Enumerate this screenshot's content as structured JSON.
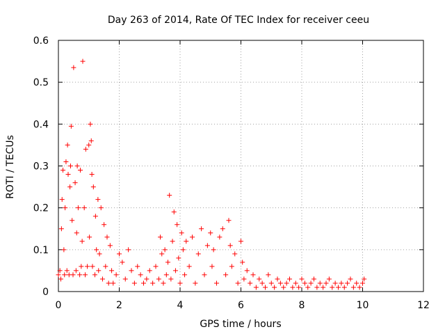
{
  "chart_data": {
    "type": "scatter",
    "title": "Day 263 of 2014, Rate Of TEC Index for receiver ceeu",
    "xlabel": "GPS time / hours",
    "ylabel": "ROTI / TECUs",
    "xlim": [
      0,
      12
    ],
    "ylim": [
      0,
      0.6
    ],
    "x_ticks": [
      0,
      2,
      4,
      6,
      8,
      10,
      12
    ],
    "y_ticks": [
      0,
      0.1,
      0.2,
      0.3,
      0.4,
      0.5,
      0.6
    ],
    "x_tick_labels": [
      "0",
      "2",
      "4",
      "6",
      "8",
      "10",
      "12"
    ],
    "y_tick_labels": [
      "0",
      "0.1",
      "0.2",
      "0.3",
      "0.4",
      "0.5",
      "0.6"
    ],
    "grid": true,
    "marker": "plus",
    "color": "#ff0000",
    "series": [
      {
        "name": "ROTI",
        "points": [
          [
            0.0,
            0.04
          ],
          [
            0.05,
            0.05
          ],
          [
            0.08,
            0.03
          ],
          [
            0.1,
            0.15
          ],
          [
            0.12,
            0.22
          ],
          [
            0.15,
            0.29
          ],
          [
            0.18,
            0.1
          ],
          [
            0.2,
            0.04
          ],
          [
            0.22,
            0.2
          ],
          [
            0.25,
            0.31
          ],
          [
            0.28,
            0.05
          ],
          [
            0.3,
            0.35
          ],
          [
            0.32,
            0.28
          ],
          [
            0.35,
            0.04
          ],
          [
            0.38,
            0.25
          ],
          [
            0.4,
            0.3
          ],
          [
            0.42,
            0.395
          ],
          [
            0.45,
            0.17
          ],
          [
            0.48,
            0.04
          ],
          [
            0.5,
            0.535
          ],
          [
            0.55,
            0.26
          ],
          [
            0.58,
            0.05
          ],
          [
            0.6,
            0.14
          ],
          [
            0.62,
            0.3
          ],
          [
            0.65,
            0.2
          ],
          [
            0.7,
            0.04
          ],
          [
            0.72,
            0.29
          ],
          [
            0.75,
            0.06
          ],
          [
            0.78,
            0.12
          ],
          [
            0.8,
            0.55
          ],
          [
            0.85,
            0.2
          ],
          [
            0.88,
            0.04
          ],
          [
            0.9,
            0.34
          ],
          [
            0.95,
            0.06
          ],
          [
            1.0,
            0.35
          ],
          [
            1.02,
            0.13
          ],
          [
            1.05,
            0.4
          ],
          [
            1.08,
            0.36
          ],
          [
            1.1,
            0.28
          ],
          [
            1.12,
            0.06
          ],
          [
            1.15,
            0.25
          ],
          [
            1.2,
            0.04
          ],
          [
            1.22,
            0.18
          ],
          [
            1.25,
            0.1
          ],
          [
            1.3,
            0.22
          ],
          [
            1.32,
            0.05
          ],
          [
            1.35,
            0.09
          ],
          [
            1.4,
            0.2
          ],
          [
            1.45,
            0.03
          ],
          [
            1.5,
            0.16
          ],
          [
            1.55,
            0.06
          ],
          [
            1.6,
            0.13
          ],
          [
            1.65,
            0.02
          ],
          [
            1.7,
            0.11
          ],
          [
            1.75,
            0.05
          ],
          [
            1.8,
            0.02
          ],
          [
            1.9,
            0.04
          ],
          [
            2.0,
            0.09
          ],
          [
            2.1,
            0.07
          ],
          [
            2.2,
            0.03
          ],
          [
            2.3,
            0.1
          ],
          [
            2.4,
            0.05
          ],
          [
            2.5,
            0.02
          ],
          [
            2.6,
            0.06
          ],
          [
            2.7,
            0.04
          ],
          [
            2.8,
            0.02
          ],
          [
            2.9,
            0.03
          ],
          [
            3.0,
            0.05
          ],
          [
            3.1,
            0.02
          ],
          [
            3.2,
            0.06
          ],
          [
            3.3,
            0.03
          ],
          [
            3.35,
            0.13
          ],
          [
            3.4,
            0.09
          ],
          [
            3.45,
            0.02
          ],
          [
            3.5,
            0.1
          ],
          [
            3.55,
            0.04
          ],
          [
            3.6,
            0.07
          ],
          [
            3.65,
            0.23
          ],
          [
            3.7,
            0.03
          ],
          [
            3.75,
            0.12
          ],
          [
            3.8,
            0.19
          ],
          [
            3.85,
            0.05
          ],
          [
            3.9,
            0.16
          ],
          [
            3.95,
            0.08
          ],
          [
            4.0,
            0.02
          ],
          [
            4.05,
            0.14
          ],
          [
            4.1,
            0.1
          ],
          [
            4.15,
            0.04
          ],
          [
            4.2,
            0.12
          ],
          [
            4.3,
            0.06
          ],
          [
            4.4,
            0.13
          ],
          [
            4.5,
            0.02
          ],
          [
            4.6,
            0.09
          ],
          [
            4.7,
            0.15
          ],
          [
            4.8,
            0.04
          ],
          [
            4.9,
            0.11
          ],
          [
            5.0,
            0.14
          ],
          [
            5.05,
            0.06
          ],
          [
            5.1,
            0.1
          ],
          [
            5.2,
            0.02
          ],
          [
            5.3,
            0.13
          ],
          [
            5.4,
            0.15
          ],
          [
            5.5,
            0.04
          ],
          [
            5.6,
            0.17
          ],
          [
            5.65,
            0.11
          ],
          [
            5.7,
            0.06
          ],
          [
            5.8,
            0.09
          ],
          [
            5.9,
            0.02
          ],
          [
            6.0,
            0.12
          ],
          [
            6.05,
            0.07
          ],
          [
            6.1,
            0.03
          ],
          [
            6.2,
            0.05
          ],
          [
            6.3,
            0.02
          ],
          [
            6.4,
            0.04
          ],
          [
            6.5,
            0.01
          ],
          [
            6.6,
            0.03
          ],
          [
            6.7,
            0.02
          ],
          [
            6.8,
            0.01
          ],
          [
            6.9,
            0.04
          ],
          [
            7.0,
            0.02
          ],
          [
            7.1,
            0.01
          ],
          [
            7.2,
            0.03
          ],
          [
            7.3,
            0.02
          ],
          [
            7.4,
            0.01
          ],
          [
            7.5,
            0.02
          ],
          [
            7.6,
            0.03
          ],
          [
            7.7,
            0.01
          ],
          [
            7.8,
            0.02
          ],
          [
            7.9,
            0.01
          ],
          [
            8.0,
            0.03
          ],
          [
            8.1,
            0.02
          ],
          [
            8.2,
            0.01
          ],
          [
            8.3,
            0.02
          ],
          [
            8.4,
            0.03
          ],
          [
            8.5,
            0.01
          ],
          [
            8.6,
            0.02
          ],
          [
            8.7,
            0.01
          ],
          [
            8.8,
            0.02
          ],
          [
            8.9,
            0.03
          ],
          [
            9.0,
            0.01
          ],
          [
            9.1,
            0.02
          ],
          [
            9.2,
            0.01
          ],
          [
            9.3,
            0.02
          ],
          [
            9.4,
            0.01
          ],
          [
            9.5,
            0.02
          ],
          [
            9.6,
            0.03
          ],
          [
            9.7,
            0.01
          ],
          [
            9.8,
            0.02
          ],
          [
            9.9,
            0.01
          ],
          [
            10.0,
            0.02
          ],
          [
            10.05,
            0.03
          ]
        ]
      }
    ]
  }
}
